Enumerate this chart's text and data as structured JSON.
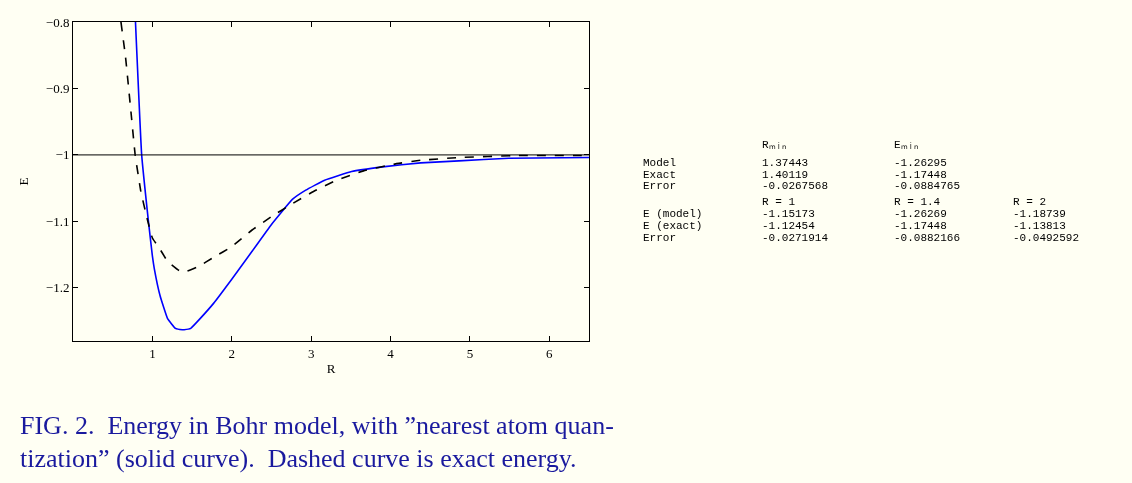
{
  "chart_data": [
    {
      "type": "line",
      "xlabel": "R",
      "ylabel": "E",
      "xlim": [
        0,
        6.5
      ],
      "ylim": [
        -1.28,
        -0.8
      ],
      "xticks": [
        1,
        2,
        3,
        4,
        5,
        6
      ],
      "yticks": [
        {
          "value": -0.8,
          "label": "−0.8"
        },
        {
          "value": -0.9,
          "label": "−0.9"
        },
        {
          "value": -1,
          "label": "−1"
        },
        {
          "value": -1.1,
          "label": "−1.1"
        },
        {
          "value": -1.2,
          "label": "−1.2"
        }
      ],
      "grid": false,
      "ref_lines": [
        {
          "axis": "y",
          "value": -1,
          "color": "#000000"
        }
      ],
      "series": [
        {
          "color": "#0000ff",
          "line_style": "solid",
          "x": [
            0.787,
            0.865,
            0.952,
            1.0,
            1.024,
            1.097,
            1.19,
            1.29,
            1.377,
            1.4,
            1.483,
            1.604,
            1.773,
            2.0,
            2.256,
            2.498,
            2.763,
            2.932,
            3.17,
            3.51,
            3.9,
            4.38,
            4.86,
            5.49,
            6.5
          ],
          "values": [
            -0.8,
            -1.0,
            -1.102,
            -1.152,
            -1.171,
            -1.212,
            -1.246,
            -1.261,
            -1.263,
            -1.263,
            -1.261,
            -1.246,
            -1.223,
            -1.187,
            -1.145,
            -1.105,
            -1.067,
            -1.053,
            -1.038,
            -1.025,
            -1.018,
            -1.012,
            -1.009,
            -1.005,
            -1.004
          ]
        },
        {
          "color": "#000000",
          "line_style": "dashed",
          "x": [
            0.604,
            0.662,
            0.734,
            0.783,
            0.855,
            0.928,
            1.0,
            1.097,
            1.19,
            1.338,
            1.435,
            1.58,
            1.773,
            2.0,
            2.256,
            2.498,
            2.74,
            3.03,
            3.32,
            3.66,
            4.04,
            4.38,
            4.86,
            5.59,
            6.5
          ],
          "values": [
            -0.8,
            -0.853,
            -0.94,
            -1.0,
            -1.055,
            -1.093,
            -1.125,
            -1.142,
            -1.16,
            -1.174,
            -1.175,
            -1.168,
            -1.154,
            -1.138,
            -1.113,
            -1.093,
            -1.075,
            -1.055,
            -1.038,
            -1.024,
            -1.014,
            -1.008,
            -1.004,
            -1.001,
            -1.001
          ]
        }
      ],
      "annotations": [
        "FIG. 2.  Energy in Bohr model, with ”nearest atom quan-",
        "tization” (solid curve).  Dashed curve is exact energy."
      ]
    },
    {
      "type": "other",
      "annotations": [
        "\tRₘᵢₙ\tEₘᵢₙ",
        "Model\t1.37443\t-1.26295",
        "Exact\t1.40119\t-1.17448",
        "Error\t-0.0267568\t-0.0884765",
        "\tR = 1\tR = 1.4\tR = 2",
        "E (model)\t-1.15173\t-1.26269\t-1.18739",
        "E (exact)\t-1.12454\t-1.17448\t-1.13813",
        "Error\t-0.0271914\t-0.0882166\t-0.0492592"
      ]
    }
  ]
}
